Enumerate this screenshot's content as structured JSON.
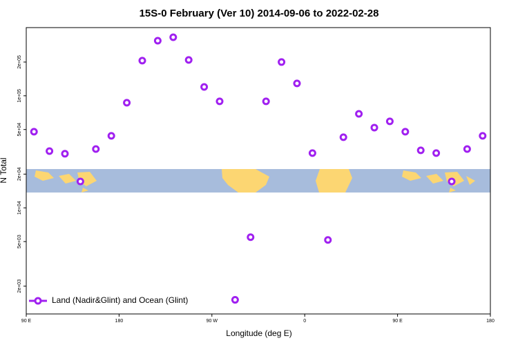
{
  "chart_data": {
    "type": "scatter",
    "title": "15S-0 February (Ver 10)   2014-09-06 to 2022-02-28",
    "x_label": "Longitude (deg E)",
    "y_label": "N Total",
    "log_y": true,
    "legend_position": "bottom-left",
    "xlim": [
      90,
      540
    ],
    "xticks": [
      {
        "value": 90,
        "label": "90 E"
      },
      {
        "value": 180,
        "label": "180"
      },
      {
        "value": 270,
        "label": "90 W"
      },
      {
        "value": 360,
        "label": "0"
      },
      {
        "value": 450,
        "label": "90 E"
      },
      {
        "value": 540,
        "label": "180"
      }
    ],
    "ylim": [
      1130,
      406000
    ],
    "yticks": [
      {
        "value": 2000,
        "label": "2e+03"
      },
      {
        "value": 5000,
        "label": "5e+03"
      },
      {
        "value": 10000,
        "label": "1e+04"
      },
      {
        "value": 20000,
        "label": "2e+04"
      },
      {
        "value": 50000,
        "label": "5e+04"
      },
      {
        "value": 100000,
        "label": "1e+05"
      },
      {
        "value": 200000,
        "label": "2e+05"
      }
    ],
    "series": [
      {
        "name": "Land (Nadir&Glint) and Ocean (Glint)",
        "color": "#a020f0",
        "x": [
          97.5,
          112.5,
          127.5,
          142.5,
          157.5,
          172.5,
          187.5,
          202.5,
          217.5,
          232.5,
          247.5,
          262.5,
          277.5,
          292.5,
          307.5,
          322.5,
          337.5,
          352.5,
          367.5,
          382.5,
          397.5,
          412.5,
          427.5,
          442.5,
          457.5,
          472.5,
          487.5,
          502.5,
          517.5,
          532.5
        ],
        "values": [
          47800,
          32100,
          30400,
          17200,
          33500,
          43900,
          86700,
          206000,
          310000,
          333000,
          209000,
          120000,
          89200,
          1510,
          5470,
          89200,
          200000,
          129000,
          30800,
          5170,
          42700,
          69000,
          52000,
          59100,
          47800,
          32600,
          30800,
          17200,
          33500,
          43900
        ]
      }
    ]
  }
}
